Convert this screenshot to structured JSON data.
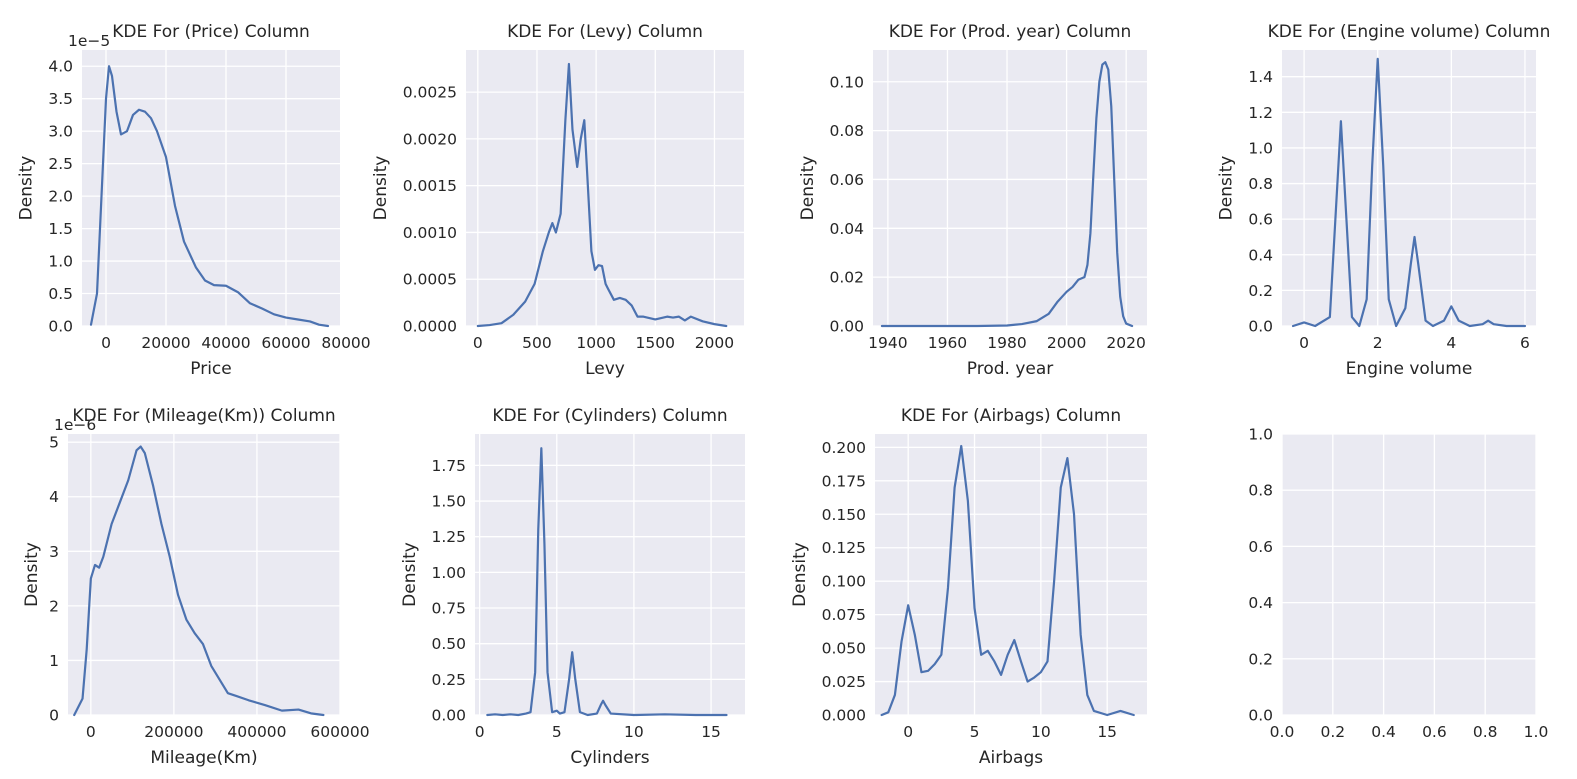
{
  "figure": {
    "background": "#ffffff",
    "axes_face": "#eaeaf2",
    "grid_color": "#ffffff",
    "line_color": "#4c72b0"
  },
  "chart_data": [
    {
      "type": "line",
      "title": "KDE For (Price) Column",
      "xlabel": "Price",
      "ylabel": "Density",
      "offset_text": "1e−5",
      "xlim": [
        -8000,
        78000
      ],
      "ylim": [
        0,
        4.25
      ],
      "xticks": [
        0,
        20000,
        40000,
        60000,
        80000
      ],
      "xtick_labels": [
        "0",
        "20000",
        "40000",
        "60000",
        "80000"
      ],
      "yticks": [
        0,
        0.5,
        1.0,
        1.5,
        2.0,
        2.5,
        3.0,
        3.5,
        4.0
      ],
      "ytick_labels": [
        "0.0",
        "0.5",
        "1.0",
        "1.5",
        "2.0",
        "2.5",
        "3.0",
        "3.5",
        "4.0"
      ],
      "grid": true,
      "series": [
        {
          "values_scale": "×1e-5",
          "x": [
            -5000,
            -3000,
            -1500,
            0,
            1000,
            2000,
            3500,
            5000,
            7000,
            9000,
            11000,
            13000,
            15000,
            17000,
            20000,
            23000,
            26000,
            30000,
            33000,
            36000,
            40000,
            44000,
            48000,
            52000,
            56000,
            60000,
            64000,
            68000,
            71000,
            74000
          ],
          "y": [
            0.02,
            0.5,
            2.0,
            3.5,
            4.0,
            3.85,
            3.3,
            2.95,
            3.0,
            3.25,
            3.33,
            3.3,
            3.2,
            3.0,
            2.6,
            1.85,
            1.3,
            0.9,
            0.7,
            0.63,
            0.62,
            0.52,
            0.35,
            0.27,
            0.18,
            0.13,
            0.1,
            0.07,
            0.02,
            0.0
          ]
        }
      ]
    },
    {
      "type": "line",
      "title": "KDE For (Levy) Column",
      "xlabel": "Levy",
      "ylabel": "Density",
      "xlim": [
        -100,
        2250
      ],
      "ylim": [
        0,
        0.00295
      ],
      "xticks": [
        0,
        500,
        1000,
        1500,
        2000
      ],
      "xtick_labels": [
        "0",
        "500",
        "1000",
        "1500",
        "2000"
      ],
      "yticks": [
        0,
        0.0005,
        0.001,
        0.0015,
        0.002,
        0.0025
      ],
      "ytick_labels": [
        "0.0000",
        "0.0005",
        "0.0010",
        "0.0015",
        "0.0020",
        "0.0025"
      ],
      "grid": true,
      "series": [
        {
          "x": [
            0,
            100,
            200,
            300,
            400,
            480,
            550,
            600,
            630,
            660,
            700,
            740,
            770,
            800,
            840,
            870,
            900,
            930,
            960,
            990,
            1020,
            1050,
            1080,
            1100,
            1150,
            1200,
            1250,
            1300,
            1350,
            1400,
            1500,
            1600,
            1650,
            1700,
            1750,
            1800,
            1900,
            2000,
            2100
          ],
          "y": [
            0,
            1e-05,
            3e-05,
            0.00012,
            0.00026,
            0.00045,
            0.0008,
            0.001,
            0.0011,
            0.001,
            0.0012,
            0.0022,
            0.0028,
            0.0021,
            0.0017,
            0.002,
            0.0022,
            0.0015,
            0.0008,
            0.0006,
            0.00065,
            0.00064,
            0.00045,
            0.0004,
            0.00028,
            0.0003,
            0.00028,
            0.00022,
            0.0001,
            0.0001,
            7e-05,
            0.0001,
            9e-05,
            0.0001,
            6e-05,
            0.0001,
            5e-05,
            2e-05,
            0.0
          ]
        }
      ]
    },
    {
      "type": "line",
      "title": "KDE For (Prod. year) Column",
      "xlabel": "Prod. year",
      "ylabel": "Density",
      "xlim": [
        1935,
        2027
      ],
      "ylim": [
        0,
        0.113
      ],
      "xticks": [
        1940,
        1960,
        1980,
        2000,
        2020
      ],
      "xtick_labels": [
        "1940",
        "1960",
        "1980",
        "2000",
        "2020"
      ],
      "yticks": [
        0,
        0.02,
        0.04,
        0.06,
        0.08,
        0.1
      ],
      "ytick_labels": [
        "0.00",
        "0.02",
        "0.04",
        "0.06",
        "0.08",
        "0.10"
      ],
      "grid": true,
      "series": [
        {
          "x": [
            1938,
            1950,
            1960,
            1970,
            1980,
            1985,
            1990,
            1994,
            1997,
            2000,
            2002,
            2004,
            2006,
            2007,
            2008,
            2009,
            2010,
            2011,
            2012,
            2013,
            2014,
            2015,
            2016,
            2017,
            2018,
            2019,
            2020,
            2022
          ],
          "y": [
            0.0,
            0.0,
            0.0,
            0.0,
            0.0002,
            0.0008,
            0.002,
            0.005,
            0.01,
            0.014,
            0.016,
            0.019,
            0.02,
            0.025,
            0.038,
            0.062,
            0.085,
            0.1,
            0.107,
            0.108,
            0.105,
            0.09,
            0.06,
            0.03,
            0.012,
            0.004,
            0.001,
            0.0
          ]
        }
      ]
    },
    {
      "type": "line",
      "title": "KDE For (Engine volume) Column",
      "xlabel": "Engine volume",
      "ylabel": "Density",
      "xlim": [
        -0.6,
        6.3
      ],
      "ylim": [
        0,
        1.55
      ],
      "xticks": [
        0,
        2,
        4,
        6
      ],
      "xtick_labels": [
        "0",
        "2",
        "4",
        "6"
      ],
      "yticks": [
        0,
        0.2,
        0.4,
        0.6,
        0.8,
        1.0,
        1.2,
        1.4
      ],
      "ytick_labels": [
        "0.0",
        "0.2",
        "0.4",
        "0.6",
        "0.8",
        "1.0",
        "1.2",
        "1.4"
      ],
      "grid": true,
      "series": [
        {
          "x": [
            -0.3,
            0.0,
            0.3,
            0.7,
            0.85,
            1.0,
            1.15,
            1.3,
            1.5,
            1.7,
            1.85,
            2.0,
            2.15,
            2.3,
            2.5,
            2.75,
            2.9,
            3.0,
            3.1,
            3.3,
            3.5,
            3.8,
            4.0,
            4.2,
            4.5,
            4.85,
            5.0,
            5.15,
            5.5,
            6.0
          ],
          "y": [
            0.0,
            0.02,
            0.0,
            0.05,
            0.6,
            1.15,
            0.6,
            0.05,
            0.0,
            0.15,
            0.9,
            1.5,
            0.9,
            0.15,
            0.0,
            0.1,
            0.35,
            0.5,
            0.35,
            0.03,
            0.0,
            0.03,
            0.11,
            0.03,
            0.0,
            0.01,
            0.03,
            0.01,
            0.0,
            0.0
          ]
        }
      ]
    },
    {
      "type": "line",
      "title": "KDE For (Mileage(Km)) Column",
      "xlabel": "Mileage(Km)",
      "ylabel": "Density",
      "offset_text": "1e−6",
      "xlim": [
        -55000,
        600000
      ],
      "ylim": [
        0,
        5.15
      ],
      "xticks": [
        0,
        200000,
        400000,
        600000
      ],
      "xtick_labels": [
        "0",
        "200000",
        "400000",
        "600000"
      ],
      "yticks": [
        0,
        1,
        2,
        3,
        4,
        5
      ],
      "ytick_labels": [
        "0",
        "1",
        "2",
        "3",
        "4",
        "5"
      ],
      "grid": true,
      "series": [
        {
          "values_scale": "×1e-6",
          "x": [
            -40000,
            -20000,
            -10000,
            0,
            10000,
            20000,
            30000,
            50000,
            70000,
            90000,
            110000,
            120000,
            130000,
            150000,
            170000,
            190000,
            210000,
            230000,
            250000,
            270000,
            290000,
            310000,
            330000,
            350000,
            380000,
            420000,
            460000,
            500000,
            530000,
            560000
          ],
          "y": [
            0.0,
            0.3,
            1.2,
            2.5,
            2.75,
            2.7,
            2.9,
            3.5,
            3.9,
            4.3,
            4.85,
            4.92,
            4.8,
            4.2,
            3.5,
            2.9,
            2.2,
            1.75,
            1.5,
            1.3,
            0.9,
            0.65,
            0.4,
            0.35,
            0.27,
            0.18,
            0.08,
            0.1,
            0.03,
            0.0
          ]
        }
      ]
    },
    {
      "type": "line",
      "title": "KDE For (Cylinders) Column",
      "xlabel": "Cylinders",
      "ylabel": "Density",
      "xlim": [
        -0.3,
        17.2
      ],
      "ylim": [
        0,
        1.97
      ],
      "xticks": [
        0,
        5,
        10,
        15
      ],
      "xtick_labels": [
        "0",
        "5",
        "10",
        "15"
      ],
      "yticks": [
        0,
        0.25,
        0.5,
        0.75,
        1.0,
        1.25,
        1.5,
        1.75
      ],
      "ytick_labels": [
        "0.00",
        "0.25",
        "0.50",
        "0.75",
        "1.00",
        "1.25",
        "1.50",
        "1.75"
      ],
      "grid": true,
      "series": [
        {
          "x": [
            0.5,
            1.0,
            1.5,
            2.0,
            2.5,
            3.0,
            3.3,
            3.6,
            3.8,
            4.0,
            4.2,
            4.4,
            4.7,
            5.0,
            5.2,
            5.5,
            5.8,
            6.0,
            6.2,
            6.5,
            7.0,
            7.6,
            7.85,
            8.0,
            8.15,
            8.5,
            10.0,
            12.0,
            14.0,
            16.0
          ],
          "y": [
            0.0,
            0.005,
            0.0,
            0.005,
            0.0,
            0.01,
            0.02,
            0.3,
            1.3,
            1.87,
            1.2,
            0.3,
            0.02,
            0.03,
            0.01,
            0.02,
            0.25,
            0.44,
            0.25,
            0.02,
            0.0,
            0.01,
            0.07,
            0.1,
            0.07,
            0.01,
            0.0,
            0.005,
            0.0,
            0.0
          ]
        }
      ]
    },
    {
      "type": "line",
      "title": "KDE For (Airbags) Column",
      "xlabel": "Airbags",
      "ylabel": "Density",
      "xlim": [
        -2.5,
        18.0
      ],
      "ylim": [
        0,
        0.21
      ],
      "xticks": [
        0,
        5,
        10,
        15
      ],
      "xtick_labels": [
        "0",
        "5",
        "10",
        "15"
      ],
      "yticks": [
        0,
        0.025,
        0.05,
        0.075,
        0.1,
        0.125,
        0.15,
        0.175,
        0.2
      ],
      "ytick_labels": [
        "0.000",
        "0.025",
        "0.050",
        "0.075",
        "0.100",
        "0.125",
        "0.150",
        "0.175",
        "0.200"
      ],
      "grid": true,
      "series": [
        {
          "x": [
            -2.0,
            -1.5,
            -1.0,
            -0.5,
            0.0,
            0.5,
            1.0,
            1.5,
            2.0,
            2.5,
            3.0,
            3.5,
            4.0,
            4.5,
            5.0,
            5.5,
            6.0,
            6.5,
            7.0,
            7.5,
            8.0,
            8.5,
            9.0,
            9.5,
            10.0,
            10.5,
            11.0,
            11.5,
            12.0,
            12.5,
            13.0,
            13.5,
            14.0,
            15.0,
            16.0,
            17.0
          ],
          "y": [
            0.0,
            0.002,
            0.015,
            0.055,
            0.082,
            0.06,
            0.032,
            0.033,
            0.038,
            0.045,
            0.095,
            0.17,
            0.201,
            0.16,
            0.08,
            0.045,
            0.048,
            0.04,
            0.03,
            0.045,
            0.056,
            0.04,
            0.025,
            0.028,
            0.032,
            0.04,
            0.1,
            0.17,
            0.192,
            0.15,
            0.06,
            0.015,
            0.003,
            0.0,
            0.003,
            0.0
          ]
        }
      ]
    },
    {
      "type": "line",
      "title": "",
      "xlabel": "",
      "ylabel": "",
      "xlim": [
        0,
        1
      ],
      "ylim": [
        0,
        1
      ],
      "xticks": [
        0,
        0.2,
        0.4,
        0.6,
        0.8,
        1.0
      ],
      "xtick_labels": [
        "0.0",
        "0.2",
        "0.4",
        "0.6",
        "0.8",
        "1.0"
      ],
      "yticks": [
        0,
        0.2,
        0.4,
        0.6,
        0.8,
        1.0
      ],
      "ytick_labels": [
        "0.0",
        "0.2",
        "0.4",
        "0.6",
        "0.8",
        "1.0"
      ],
      "grid": true,
      "series": []
    }
  ]
}
